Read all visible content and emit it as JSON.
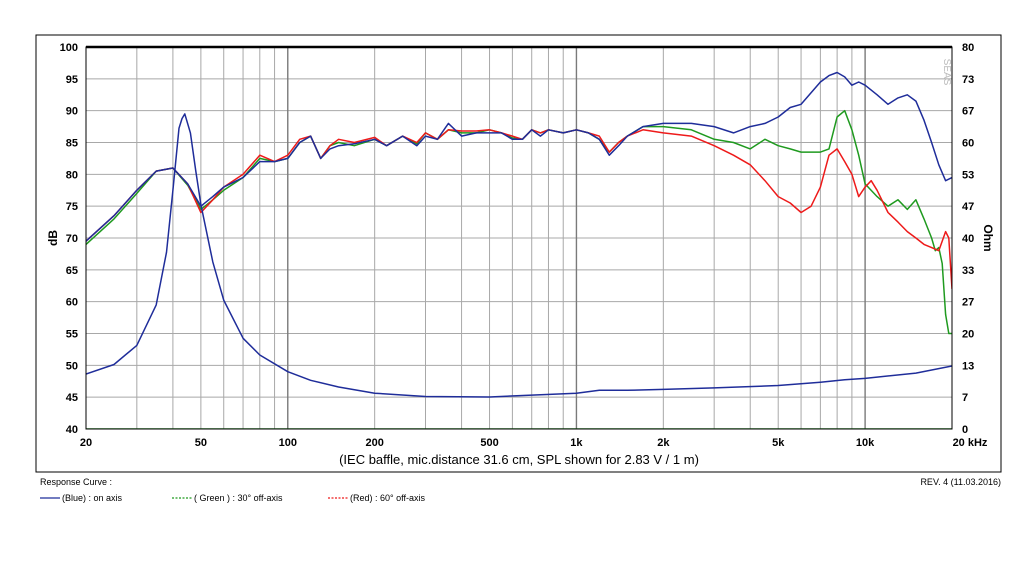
{
  "chart_data": {
    "type": "line",
    "caption": "(IEC baffle, mic.distance 31.6 cm, SPL shown for 2.83 V / 1 m)",
    "watermark": "SEAS",
    "x_scale": "log",
    "xlim": [
      20,
      20000
    ],
    "x_tick_values": [
      20,
      50,
      100,
      200,
      500,
      1000,
      2000,
      5000,
      10000,
      20000
    ],
    "x_tick_labels": [
      "20",
      "50",
      "100",
      "200",
      "500",
      "1k",
      "2k",
      "5k",
      "10k",
      "20 kHz"
    ],
    "grid": true,
    "y_left": {
      "label": "dB",
      "lim": [
        40,
        100
      ],
      "ticks": [
        "40",
        "45",
        "50",
        "55",
        "60",
        "65",
        "70",
        "75",
        "80",
        "85",
        "90",
        "95",
        "100"
      ]
    },
    "y_right": {
      "label": "Ohm",
      "lim": [
        0,
        80
      ],
      "ticks": [
        "0",
        "7",
        "13",
        "20",
        "27",
        "33",
        "40",
        "47",
        "53",
        "60",
        "67",
        "73",
        "80"
      ]
    },
    "legend": {
      "title": "Response Curve :",
      "placement": "bottom-left",
      "items": [
        {
          "label": "(Blue)  : on axis",
          "color": "#1f2d9a"
        },
        {
          "label": "( Green ) : 30° off-axis",
          "color": "#1f9a1f"
        },
        {
          "label": "(Red) : 60° off-axis",
          "color": "#ee1a1a"
        }
      ]
    },
    "revision": "REV. 4 (11.03.2016)",
    "series": [
      {
        "key": "spl_on_axis",
        "color": "#1f2d9a",
        "axis": "left",
        "x": [
          20,
          25,
          30,
          35,
          40,
          45,
          50,
          55,
          60,
          70,
          80,
          90,
          100,
          110,
          120,
          130,
          140,
          150,
          170,
          200,
          220,
          250,
          280,
          300,
          330,
          360,
          400,
          450,
          500,
          550,
          600,
          650,
          700,
          750,
          800,
          900,
          1000,
          1100,
          1200,
          1300,
          1400,
          1500,
          1700,
          2000,
          2500,
          3000,
          3500,
          4000,
          4500,
          5000,
          5500,
          6000,
          7000,
          7500,
          8000,
          8500,
          9000,
          9500,
          10000,
          11000,
          12000,
          13000,
          14000,
          15000,
          16000,
          17000,
          18000,
          19000,
          20000
        ],
        "values": [
          69.5,
          73.5,
          77.5,
          80.5,
          81,
          78.5,
          75,
          76.5,
          78,
          79.5,
          82,
          82,
          82.5,
          85,
          86,
          82.5,
          84,
          84.5,
          84.8,
          85.5,
          84.5,
          86,
          84.5,
          86,
          85.5,
          88,
          86,
          86.5,
          86.5,
          86.5,
          85.5,
          85.5,
          87,
          86,
          87,
          86.5,
          87,
          86.5,
          85.5,
          83,
          84.5,
          86,
          87.5,
          88,
          88,
          87.5,
          86.5,
          87.5,
          88,
          89,
          90.5,
          91,
          94.5,
          95.5,
          96,
          95.3,
          94,
          94.5,
          94,
          92.5,
          91,
          92,
          92.5,
          91.5,
          88.5,
          85,
          81.5,
          79,
          79.5
        ]
      },
      {
        "key": "spl_30_off_axis",
        "color": "#1f9a1f",
        "axis": "left",
        "x": [
          20,
          25,
          30,
          35,
          40,
          45,
          50,
          55,
          60,
          70,
          80,
          90,
          100,
          110,
          120,
          130,
          140,
          150,
          170,
          200,
          220,
          250,
          280,
          300,
          330,
          360,
          400,
          450,
          500,
          550,
          600,
          650,
          700,
          750,
          800,
          900,
          1000,
          1100,
          1200,
          1300,
          1400,
          1500,
          1700,
          2000,
          2500,
          3000,
          3500,
          4000,
          4500,
          5000,
          5500,
          6000,
          7000,
          7500,
          8000,
          8500,
          9000,
          9500,
          10000,
          11000,
          12000,
          13000,
          14000,
          15000,
          16000,
          17000,
          17500,
          18000,
          18500,
          19000,
          19500,
          20000
        ],
        "values": [
          69,
          73,
          77,
          80.5,
          81,
          78.3,
          74.5,
          76,
          77.5,
          79.5,
          82.5,
          82,
          82.5,
          85,
          86,
          82.5,
          84.5,
          85,
          84.5,
          85.5,
          84.5,
          86,
          84.8,
          86.5,
          85.5,
          87,
          86.5,
          86.5,
          87,
          86.5,
          85.7,
          85.5,
          87,
          86.5,
          87,
          86.5,
          87,
          86.5,
          85.5,
          83.5,
          85,
          86,
          87.5,
          87.5,
          87,
          85.5,
          85,
          84,
          85.5,
          84.5,
          84,
          83.5,
          83.5,
          84,
          89,
          90,
          87,
          83,
          78.5,
          76.5,
          75,
          76,
          74.5,
          76,
          73,
          70,
          68,
          68.5,
          66,
          58,
          55,
          55
        ]
      },
      {
        "key": "spl_60_off_axis",
        "color": "#ee1a1a",
        "axis": "left",
        "x": [
          20,
          25,
          30,
          35,
          40,
          45,
          50,
          55,
          60,
          70,
          80,
          90,
          100,
          110,
          120,
          130,
          140,
          150,
          170,
          200,
          220,
          250,
          280,
          300,
          330,
          360,
          400,
          450,
          500,
          550,
          600,
          650,
          700,
          750,
          800,
          900,
          1000,
          1100,
          1200,
          1300,
          1400,
          1500,
          1700,
          2000,
          2500,
          3000,
          3500,
          4000,
          4500,
          5000,
          5500,
          6000,
          6500,
          7000,
          7500,
          8000,
          8500,
          9000,
          9500,
          10000,
          10500,
          11000,
          12000,
          13000,
          14000,
          15000,
          16000,
          17000,
          18000,
          19000,
          19500,
          20000
        ],
        "values": [
          69.5,
          73.5,
          77.5,
          80.5,
          81,
          78.5,
          74,
          76,
          78,
          80,
          83,
          82,
          83,
          85.5,
          86,
          82.5,
          84.5,
          85.5,
          85,
          85.8,
          84.5,
          86,
          85,
          86.5,
          85.5,
          87,
          86.8,
          86.8,
          87,
          86.5,
          86,
          85.5,
          87,
          86.5,
          87,
          86.5,
          87,
          86.5,
          86,
          83.5,
          85,
          86,
          87,
          86.5,
          86,
          84.5,
          83,
          81.5,
          79,
          76.5,
          75.5,
          74,
          75,
          78,
          83,
          84,
          82,
          80,
          76.5,
          78,
          79,
          77.5,
          74,
          72.5,
          71,
          70,
          69,
          68.5,
          68,
          71,
          70,
          62
        ]
      },
      {
        "key": "impedance",
        "color": "#1f2d9a",
        "axis": "right",
        "x": [
          20,
          25,
          30,
          35,
          38,
          40,
          42,
          43,
          44,
          46,
          48,
          50,
          55,
          60,
          70,
          80,
          100,
          120,
          150,
          200,
          300,
          500,
          700,
          1000,
          1200,
          1500,
          2000,
          3000,
          5000,
          7000,
          8500,
          10000,
          15000,
          20000
        ],
        "values": [
          11.5,
          13.5,
          17.5,
          26,
          37,
          50,
          63,
          65,
          66,
          62,
          54,
          47,
          35,
          27,
          19,
          15.5,
          12,
          10.2,
          8.8,
          7.5,
          6.8,
          6.7,
          7.1,
          7.5,
          8.1,
          8.1,
          8.3,
          8.6,
          9.1,
          9.8,
          10.3,
          10.6,
          11.7,
          13.2
        ]
      },
      {
        "key": "baseline",
        "color": "#1f9a1f",
        "axis": "left",
        "x": [
          20,
          20000
        ],
        "values": [
          40,
          40
        ]
      }
    ]
  }
}
